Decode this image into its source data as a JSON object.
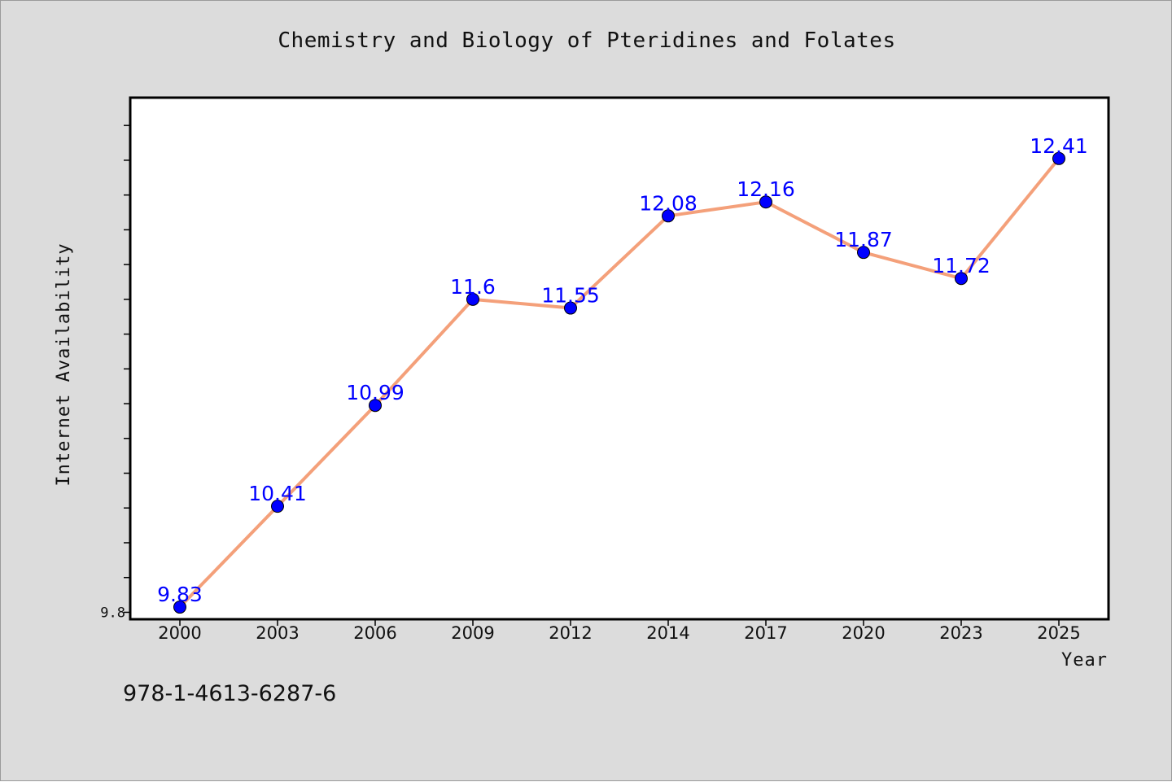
{
  "chart_data": {
    "type": "line",
    "title": "Chemistry and Biology of Pteridines and Folates",
    "xlabel": "Year",
    "ylabel": "Internet Availability",
    "categories": [
      "2000",
      "2003",
      "2006",
      "2009",
      "2012",
      "2014",
      "2017",
      "2020",
      "2023",
      "2025"
    ],
    "series": [
      {
        "values": [
          9.83,
          10.41,
          10.99,
          11.6,
          11.55,
          12.08,
          12.16,
          11.87,
          11.72,
          12.41
        ]
      }
    ],
    "data_labels": [
      "9.83",
      "10.41",
      "10.99",
      "11.6",
      "11.55",
      "12.08",
      "12.16",
      "11.87",
      "11.72",
      "12.41"
    ],
    "ylim": [
      9.76,
      12.76
    ],
    "y_tick_labels": [
      "9.8"
    ],
    "grid": false,
    "line_color": "#f4a07a",
    "marker_color": "#0000ff",
    "label_color": "#0000ff",
    "plot_background": "#ffffff",
    "figure_background": "#dcdcdc"
  },
  "footer": {
    "isbn": "978-1-4613-6287-6"
  }
}
